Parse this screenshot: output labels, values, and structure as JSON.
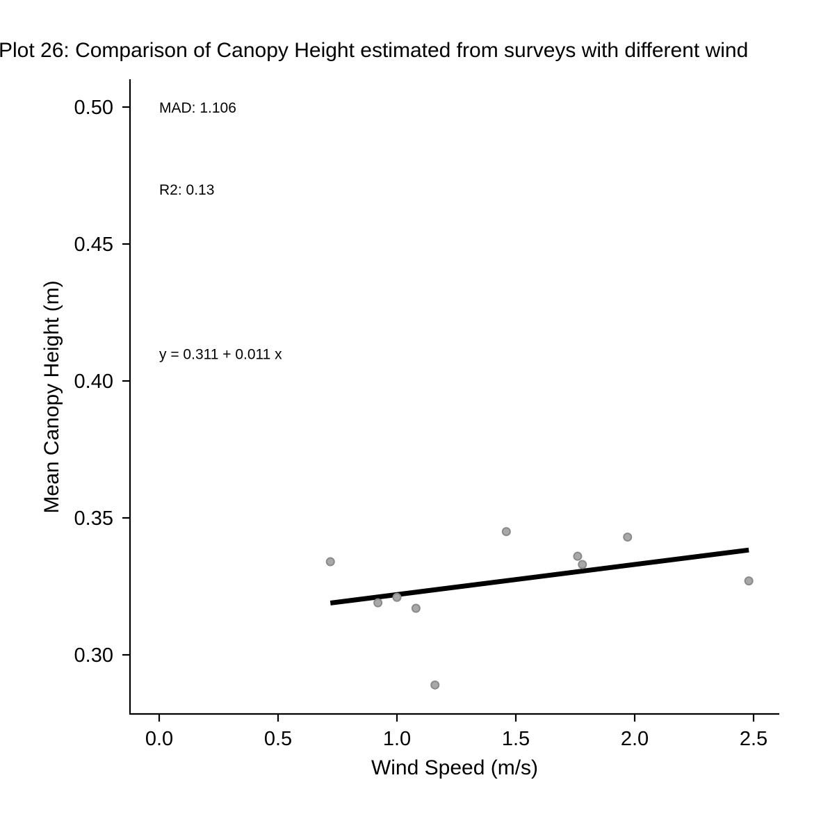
{
  "chart_data": {
    "type": "scatter",
    "title": "Plot 26: Comparison of Canopy Height estimated from surveys with different wind",
    "xlabel": "Wind Speed (m/s)",
    "ylabel": "Mean Canopy Height (m)",
    "xlim": [
      -0.125,
      2.6
    ],
    "ylim": [
      0.279,
      0.51
    ],
    "x_ticks": [
      0.0,
      0.5,
      1.0,
      1.5,
      2.0,
      2.5
    ],
    "x_tick_labels": [
      "0.0",
      "0.5",
      "1.0",
      "1.5",
      "2.0",
      "2.5"
    ],
    "y_ticks": [
      0.3,
      0.35,
      0.4,
      0.45,
      0.5
    ],
    "y_tick_labels": [
      "0.30",
      "0.35",
      "0.40",
      "0.45",
      "0.50"
    ],
    "grid": false,
    "points": [
      {
        "x": 0.72,
        "y": 0.334
      },
      {
        "x": 0.92,
        "y": 0.319
      },
      {
        "x": 1.0,
        "y": 0.321
      },
      {
        "x": 1.08,
        "y": 0.317
      },
      {
        "x": 1.16,
        "y": 0.289
      },
      {
        "x": 1.46,
        "y": 0.345
      },
      {
        "x": 1.76,
        "y": 0.336
      },
      {
        "x": 1.78,
        "y": 0.333
      },
      {
        "x": 1.97,
        "y": 0.343
      },
      {
        "x": 2.48,
        "y": 0.327
      }
    ],
    "fit_line": {
      "intercept": 0.311,
      "slope": 0.011,
      "x_range": [
        0.72,
        2.48
      ]
    },
    "annotations": [
      {
        "text": "MAD: 1.106",
        "x": 0.0,
        "y": 0.5
      },
      {
        "text": "R2: 0.13",
        "x": 0.0,
        "y": 0.47
      },
      {
        "text": "y =  0.311 + 0.011 x",
        "x": 0.0,
        "y": 0.41
      }
    ],
    "colors": {
      "point_fill": "#a8a8a8",
      "point_edge": "#8a8a8a",
      "line": "#000000"
    }
  }
}
